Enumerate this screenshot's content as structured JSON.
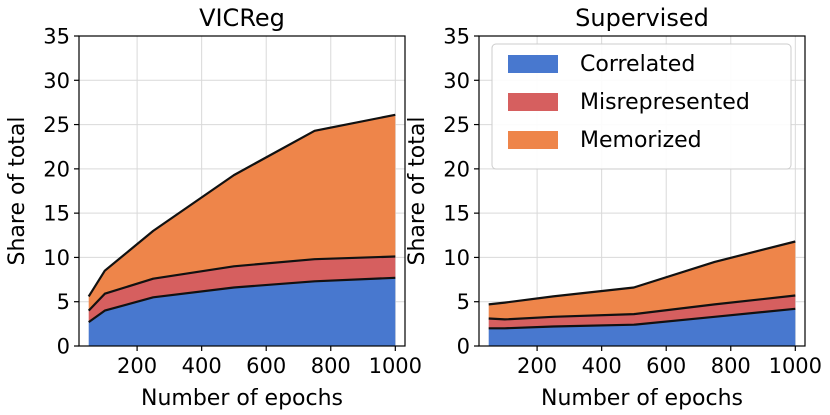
{
  "colors": {
    "Correlated": "#4878cf",
    "Misrepresented": "#d65f5f",
    "Memorized": "#ee854a"
  },
  "chart_data": [
    {
      "type": "area",
      "stacked": true,
      "title": "VICReg",
      "xlabel": "Number of epochs",
      "ylabel": "Share of total",
      "xlim": [
        20,
        1030
      ],
      "ylim": [
        0,
        35
      ],
      "xticks": [
        200,
        400,
        600,
        800,
        1000
      ],
      "yticks": [
        0,
        5,
        10,
        15,
        20,
        25,
        30,
        35
      ],
      "grid": true,
      "legend": false,
      "x": [
        50,
        100,
        250,
        500,
        750,
        1000
      ],
      "series": [
        {
          "name": "Correlated",
          "values": [
            2.7,
            4.0,
            5.5,
            6.6,
            7.3,
            7.7
          ]
        },
        {
          "name": "Misrepresented",
          "values": [
            1.3,
            1.9,
            2.1,
            2.4,
            2.5,
            2.4
          ]
        },
        {
          "name": "Memorized",
          "values": [
            1.6,
            2.6,
            5.4,
            10.3,
            14.5,
            16.0
          ]
        }
      ]
    },
    {
      "type": "area",
      "stacked": true,
      "title": "Supervised",
      "xlabel": "Number of epochs",
      "ylabel": "Share of total",
      "xlim": [
        20,
        1030
      ],
      "ylim": [
        0,
        35
      ],
      "xticks": [
        200,
        400,
        600,
        800,
        1000
      ],
      "yticks": [
        0,
        5,
        10,
        15,
        20,
        25,
        30,
        35
      ],
      "grid": true,
      "legend": "upper-left",
      "x": [
        50,
        100,
        250,
        500,
        750,
        1000
      ],
      "series": [
        {
          "name": "Correlated",
          "values": [
            2.0,
            2.0,
            2.2,
            2.4,
            3.3,
            4.2
          ]
        },
        {
          "name": "Misrepresented",
          "values": [
            1.1,
            1.0,
            1.1,
            1.2,
            1.4,
            1.5
          ]
        },
        {
          "name": "Memorized",
          "values": [
            1.6,
            1.9,
            2.3,
            3.0,
            4.8,
            6.1
          ]
        }
      ]
    }
  ]
}
